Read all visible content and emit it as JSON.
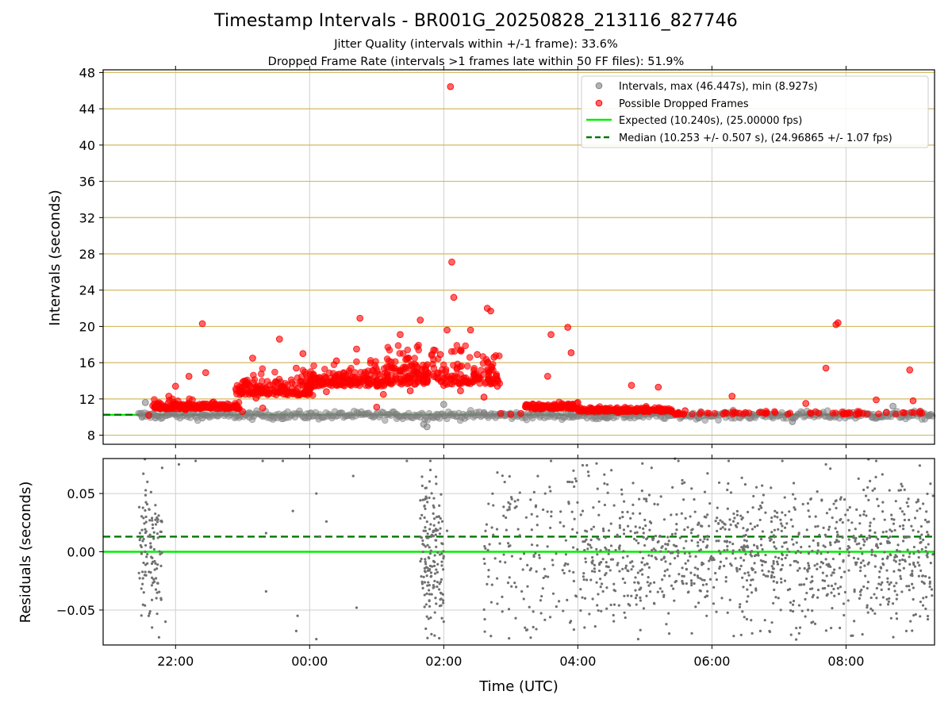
{
  "chart_data": [
    {
      "type": "scatter",
      "title": "Timestamp Intervals - BR001G_20250828_213116_827746",
      "subtitles": [
        "Jitter Quality (intervals within +/-1 frame): 33.6%",
        "Dropped Frame Rate (intervals >1 frames late within 50 FF files): 51.9%"
      ],
      "xlabel": "",
      "ylabel": "Intervals (seconds)",
      "x_unit": "hours from 22:00 UTC (tick labels show clock time)",
      "xlim": [
        -1.08,
        11.32
      ],
      "ylim": [
        7.0,
        48.3
      ],
      "yticks": [
        "8",
        "12",
        "16",
        "20",
        "24",
        "28",
        "32",
        "36",
        "40",
        "44",
        "48"
      ],
      "grid": true,
      "legend_placement": "top-right",
      "legend": [
        "Intervals, max (46.447s), min (8.927s)",
        "Possible Dropped Frames",
        "Expected (10.240s), (25.00000 fps)",
        "Median (10.253 +/- 0.507 s), (24.96865 +/- 1.07 fps)"
      ],
      "lines": [
        {
          "name": "Expected",
          "y": 10.24,
          "color": "#00ee00",
          "style": "solid"
        },
        {
          "name": "Median",
          "y": 10.253,
          "color": "#007700",
          "style": "dashed"
        }
      ],
      "series": [
        {
          "name": "Intervals",
          "color": "#808080",
          "points": [
            [
              -0.5,
              10.0
            ],
            [
              -0.45,
              11.6
            ],
            [
              -0.38,
              10.3
            ],
            [
              -0.3,
              9.9
            ],
            [
              0.1,
              11.2
            ],
            [
              0.4,
              9.9
            ],
            [
              1.1,
              10.0
            ],
            [
              1.6,
              10.2
            ],
            [
              2.0,
              10.1
            ],
            [
              3.3,
              10.3
            ],
            [
              3.7,
              9.2
            ],
            [
              3.75,
              8.927
            ],
            [
              3.9,
              10.0
            ],
            [
              4.0,
              11.4
            ],
            [
              4.6,
              10.5
            ],
            [
              4.9,
              10.3
            ],
            [
              5.1,
              10.1
            ],
            [
              5.4,
              10.4
            ],
            [
              5.6,
              10.3
            ],
            [
              5.9,
              10.2
            ],
            [
              6.2,
              10.5
            ],
            [
              6.4,
              10.0
            ],
            [
              6.7,
              10.3
            ],
            [
              7.0,
              10.5
            ],
            [
              7.4,
              10.2
            ],
            [
              7.8,
              9.9
            ],
            [
              8.2,
              10.4
            ],
            [
              8.6,
              10.3
            ],
            [
              8.9,
              10.1
            ],
            [
              9.2,
              9.5
            ],
            [
              9.5,
              10.4
            ],
            [
              9.8,
              10.2
            ],
            [
              10.1,
              10.5
            ],
            [
              10.4,
              10.0
            ],
            [
              10.7,
              11.2
            ],
            [
              10.9,
              10.4
            ],
            [
              11.1,
              10.3
            ],
            [
              11.25,
              10.2
            ]
          ]
        },
        {
          "name": "Possible Dropped Frames",
          "color": "#ff0000",
          "points": [
            [
              -0.4,
              10.2
            ],
            [
              -0.25,
              11.1
            ],
            [
              -0.1,
              12.3
            ],
            [
              0.0,
              13.4
            ],
            [
              0.15,
              10.8
            ],
            [
              0.4,
              20.3
            ],
            [
              0.45,
              14.9
            ],
            [
              0.2,
              14.5
            ],
            [
              0.55,
              11.6
            ],
            [
              0.8,
              11.0
            ],
            [
              0.9,
              13.1
            ],
            [
              1.0,
              10.6
            ],
            [
              1.1,
              13.5
            ],
            [
              1.15,
              16.5
            ],
            [
              1.2,
              12.1
            ],
            [
              1.3,
              11.0
            ],
            [
              1.45,
              13.0
            ],
            [
              1.55,
              18.6
            ],
            [
              1.65,
              12.5
            ],
            [
              1.8,
              15.4
            ],
            [
              1.9,
              17.0
            ],
            [
              2.0,
              13.0
            ],
            [
              2.1,
              14.2
            ],
            [
              2.25,
              12.8
            ],
            [
              2.4,
              16.2
            ],
            [
              2.5,
              14.5
            ],
            [
              2.6,
              13.6
            ],
            [
              2.7,
              17.5
            ],
            [
              2.75,
              20.9
            ],
            [
              2.9,
              13.7
            ],
            [
              3.0,
              11.1
            ],
            [
              3.1,
              12.5
            ],
            [
              3.2,
              14.0
            ],
            [
              3.35,
              19.1
            ],
            [
              3.45,
              16.4
            ],
            [
              3.5,
              12.9
            ],
            [
              3.6,
              15.5
            ],
            [
              3.65,
              20.7
            ],
            [
              3.75,
              14.2
            ],
            [
              3.85,
              17.4
            ],
            [
              3.95,
              16.9
            ],
            [
              4.0,
              13.5
            ],
            [
              4.05,
              19.6
            ],
            [
              4.1,
              46.447
            ],
            [
              4.12,
              27.1
            ],
            [
              4.15,
              23.2
            ],
            [
              4.2,
              15.4
            ],
            [
              4.25,
              12.9
            ],
            [
              4.3,
              14.3
            ],
            [
              4.4,
              19.6
            ],
            [
              4.5,
              16.9
            ],
            [
              4.6,
              12.2
            ],
            [
              4.65,
              22.0
            ],
            [
              4.7,
              21.7
            ],
            [
              4.75,
              16.6
            ],
            [
              4.8,
              13.4
            ],
            [
              4.85,
              10.4
            ],
            [
              5.0,
              10.3
            ],
            [
              5.15,
              10.4
            ],
            [
              5.3,
              11.1
            ],
            [
              5.45,
              10.9
            ],
            [
              5.55,
              14.5
            ],
            [
              5.6,
              19.1
            ],
            [
              5.7,
              11.1
            ],
            [
              5.85,
              19.9
            ],
            [
              5.9,
              17.1
            ],
            [
              6.0,
              11.6
            ],
            [
              6.15,
              10.6
            ],
            [
              6.4,
              10.9
            ],
            [
              6.6,
              10.5
            ],
            [
              6.8,
              13.5
            ],
            [
              7.0,
              11.0
            ],
            [
              7.2,
              13.3
            ],
            [
              7.4,
              10.6
            ],
            [
              7.6,
              10.7
            ],
            [
              8.2,
              10.5
            ],
            [
              8.3,
              12.3
            ],
            [
              8.5,
              10.5
            ],
            [
              8.8,
              10.4
            ],
            [
              9.4,
              11.5
            ],
            [
              9.7,
              15.4
            ],
            [
              9.85,
              20.2
            ],
            [
              9.88,
              20.4
            ],
            [
              10.0,
              10.4
            ],
            [
              10.15,
              10.3
            ],
            [
              10.45,
              11.9
            ],
            [
              10.6,
              10.5
            ],
            [
              10.85,
              10.5
            ],
            [
              10.95,
              15.2
            ],
            [
              11.0,
              11.8
            ],
            [
              11.1,
              10.6
            ]
          ]
        }
      ]
    },
    {
      "type": "scatter",
      "xlabel": "Time (UTC)",
      "ylabel": "Residuals (seconds)",
      "xlim": [
        -1.08,
        11.32
      ],
      "ylim": [
        -0.08,
        0.08
      ],
      "xticks": [
        "22:00",
        "00:00",
        "02:00",
        "04:00",
        "06:00",
        "08:00"
      ],
      "yticks": [
        "0.05",
        "0.00",
        "−0.05"
      ],
      "grid": true,
      "lines": [
        {
          "name": "Expected",
          "y": 0.0,
          "color": "#00ee00",
          "style": "solid"
        },
        {
          "name": "Median",
          "y": 0.013,
          "color": "#007700",
          "style": "dashed"
        }
      ],
      "series": [
        {
          "name": "Residuals",
          "color": "#707070",
          "points": [
            [
              -0.48,
              0.067
            ],
            [
              -0.42,
              0.06
            ],
            [
              -0.44,
              0.03
            ],
            [
              -0.46,
              -0.02
            ],
            [
              -0.4,
              -0.055
            ],
            [
              -0.35,
              -0.065
            ],
            [
              -0.3,
              0.04
            ],
            [
              -0.2,
              0.072
            ],
            [
              -0.15,
              -0.06
            ],
            [
              0.05,
              0.075
            ],
            [
              0.3,
              0.078
            ],
            [
              1.3,
              0.078
            ],
            [
              1.35,
              0.016
            ],
            [
              1.35,
              -0.034
            ],
            [
              1.6,
              0.078
            ],
            [
              1.75,
              0.035
            ],
            [
              1.82,
              -0.055
            ],
            [
              1.8,
              -0.068
            ],
            [
              2.1,
              0.05
            ],
            [
              2.15,
              0.013
            ],
            [
              2.1,
              -0.075
            ],
            [
              2.25,
              0.026
            ],
            [
              2.65,
              0.065
            ],
            [
              2.7,
              -0.048
            ],
            [
              3.45,
              0.078
            ],
            [
              3.72,
              0.045
            ],
            [
              3.8,
              0.078
            ],
            [
              3.9,
              -0.03
            ],
            [
              3.95,
              0.02
            ],
            [
              4.05,
              0.018
            ],
            [
              4.0,
              -0.06
            ],
            [
              4.8,
              0.068
            ],
            [
              5.6,
              0.078
            ],
            [
              5.85,
              0.06
            ],
            [
              6.1,
              -0.065
            ],
            [
              6.5,
              0.07
            ],
            [
              6.9,
              -0.075
            ],
            [
              7.1,
              0.072
            ],
            [
              7.5,
              0.078
            ],
            [
              7.7,
              -0.07
            ],
            [
              8.25,
              0.078
            ],
            [
              8.6,
              -0.07
            ],
            [
              9.05,
              0.078
            ],
            [
              9.3,
              -0.07
            ],
            [
              9.7,
              0.075
            ],
            [
              10.1,
              -0.072
            ],
            [
              10.45,
              0.078
            ],
            [
              10.9,
              -0.068
            ],
            [
              11.1,
              0.074
            ],
            [
              11.25,
              -0.03
            ]
          ]
        }
      ]
    }
  ]
}
